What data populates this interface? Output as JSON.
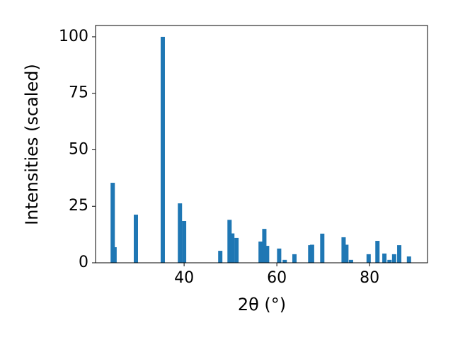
{
  "chart_data": {
    "type": "bar",
    "xlabel": "2θ (°)",
    "ylabel": "Intensities (scaled)",
    "x": [
      24.6,
      25.0,
      29.6,
      35.4,
      39.1,
      40.0,
      47.8,
      49.8,
      50.4,
      51.3,
      56.5,
      57.3,
      57.9,
      60.5,
      61.7,
      63.8,
      67.2,
      67.6,
      69.8,
      74.4,
      75.0,
      76.0,
      79.8,
      81.7,
      83.2,
      84.3,
      85.3,
      86.4,
      88.5
    ],
    "values": [
      35.4,
      6.9,
      21.3,
      100,
      26.3,
      18.5,
      5.3,
      19,
      13,
      11,
      9.4,
      15,
      7.5,
      6.3,
      1.3,
      3.8,
      7.8,
      8,
      12.9,
      11.3,
      8,
      1.3,
      3.8,
      9.7,
      4.1,
      1.3,
      3.8,
      7.8,
      2.8
    ],
    "color": "#1f77b4",
    "xlim": [
      20.9,
      92.5
    ],
    "ylim": [
      0,
      105
    ],
    "xticks": [
      40,
      60,
      80
    ],
    "yticks": [
      0,
      25,
      50,
      75,
      100
    ],
    "grid": false
  }
}
